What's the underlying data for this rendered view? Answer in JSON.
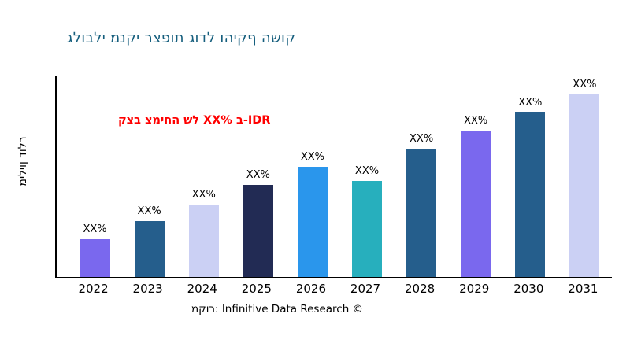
{
  "colors": {
    "title": "#155E7D",
    "annotation": "#FF0000",
    "axis": "#000000",
    "text": "#000000",
    "background": "#FFFFFF"
  },
  "chart_data": {
    "type": "bar",
    "title": "גלובלי מנקי רצפות גודל והיקף השוק",
    "ylabel": "מיליון דולר",
    "annotation": "קצב צמיחה של XX% ב-IDR",
    "source": "מקור: Infinitive Data Research ©",
    "categories": [
      "2022",
      "2023",
      "2024",
      "2025",
      "2026",
      "2027",
      "2028",
      "2029",
      "2030",
      "2031"
    ],
    "values": [
      19,
      28,
      36,
      46,
      55,
      48,
      64,
      73,
      82,
      91
    ],
    "bar_labels": [
      "XX%",
      "XX%",
      "XX%",
      "XX%",
      "XX%",
      "XX%",
      "XX%",
      "XX%",
      "XX%",
      "XX%"
    ],
    "bar_colors": [
      "#7A68EE",
      "#255E8C",
      "#CBD0F4",
      "#222B54",
      "#2A96EC",
      "#27AFBD",
      "#255E8C",
      "#7A68EE",
      "#255E8C",
      "#CBD0F4"
    ],
    "ylim": [
      0,
      100
    ],
    "grid": false,
    "legend": false
  }
}
